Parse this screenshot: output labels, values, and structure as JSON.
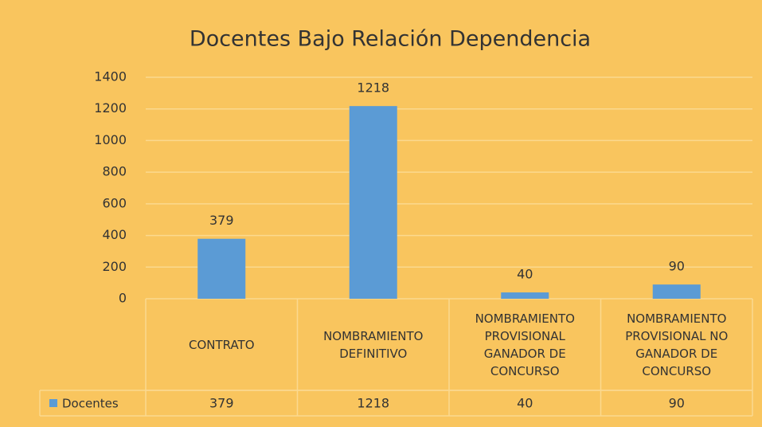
{
  "chart_data": {
    "type": "bar",
    "title": "Docentes Bajo Relación Dependencia",
    "categories": [
      "CONTRATO",
      "NOMBRAMIENTO DEFINITIVO",
      "NOMBRAMIENTO PROVISIONAL GANADOR DE CONCURSO",
      "NOMBRAMIENTO PROVISIONAL NO GANADOR DE CONCURSO"
    ],
    "series": [
      {
        "name": "Docentes",
        "color": "#5b9bd5",
        "values": [
          379,
          1218,
          40,
          90
        ]
      }
    ],
    "ylim": [
      0,
      1400
    ],
    "yticks": [
      0,
      200,
      400,
      600,
      800,
      1000,
      1200,
      1400
    ],
    "grid": true,
    "data_table": true
  }
}
